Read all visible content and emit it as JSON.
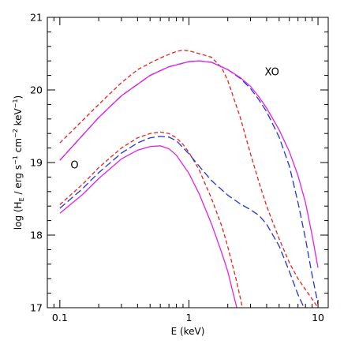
{
  "chart_data": {
    "type": "line",
    "xlabel": "E (keV)",
    "ylabel_parts": {
      "prefix": "log (H",
      "sub": "E",
      "mid": " / erg s",
      "sup1": "−1",
      "mid2": " cm",
      "sup2": "−2",
      "mid3": " keV",
      "sup3": "−1",
      "suffix": ")"
    },
    "xscale": "log",
    "xlim": [
      0.08,
      12
    ],
    "ylim": [
      17,
      21
    ],
    "xticks": [
      {
        "v": 0.1,
        "label": "0.1"
      },
      {
        "v": 1,
        "label": "1"
      },
      {
        "v": 10,
        "label": "10"
      }
    ],
    "yticks": [
      {
        "v": 17,
        "label": "17"
      },
      {
        "v": 18,
        "label": "18"
      },
      {
        "v": 19,
        "label": "19"
      },
      {
        "v": 20,
        "label": "20"
      },
      {
        "v": 21,
        "label": "21"
      }
    ],
    "annotations": [
      {
        "text": "XO",
        "x": 4.4,
        "y": 20.2
      },
      {
        "text": "O",
        "x": 0.13,
        "y": 18.92
      }
    ],
    "series": [
      {
        "group": "XO",
        "style": "red-dashed",
        "color": "#e8231f",
        "dash": "5,3",
        "x": [
          0.1,
          0.15,
          0.2,
          0.3,
          0.4,
          0.5,
          0.6,
          0.7,
          0.8,
          0.9,
          1.0,
          1.2,
          1.5,
          1.8,
          2.0,
          2.5,
          3.0,
          3.5,
          4.0,
          5.0,
          6.0,
          7.0,
          8.0,
          9.0,
          10.0
        ],
        "y": [
          19.27,
          19.58,
          19.8,
          20.1,
          20.28,
          20.37,
          20.44,
          20.49,
          20.53,
          20.55,
          20.54,
          20.5,
          20.45,
          20.3,
          20.13,
          19.62,
          19.12,
          18.72,
          18.4,
          17.95,
          17.62,
          17.4,
          17.25,
          17.12,
          17.0
        ]
      },
      {
        "group": "XO",
        "style": "blue-dashed",
        "color": "#1f35d8",
        "dash": "9,4",
        "x": [
          0.1,
          0.2,
          0.3,
          0.5,
          0.7,
          1.0,
          1.2,
          1.5,
          2.0,
          2.5,
          3.0,
          3.5,
          4.0,
          5.0,
          6.0,
          7.0,
          8.0,
          9.0,
          10.0
        ],
        "y": [
          19.03,
          19.62,
          19.92,
          20.2,
          20.32,
          20.39,
          20.4,
          20.38,
          20.28,
          20.16,
          20.02,
          19.86,
          19.7,
          19.35,
          18.95,
          18.45,
          17.95,
          17.45,
          17.05
        ]
      },
      {
        "group": "XO",
        "style": "magenta-solid",
        "color": "#e620e6",
        "dash": "",
        "x": [
          0.1,
          0.2,
          0.3,
          0.5,
          0.7,
          1.0,
          1.2,
          1.5,
          2.0,
          2.5,
          3.0,
          3.5,
          4.0,
          5.0,
          6.0,
          7.0,
          8.0,
          9.0,
          10.0
        ],
        "y": [
          19.03,
          19.62,
          19.92,
          20.2,
          20.32,
          20.39,
          20.4,
          20.38,
          20.28,
          20.17,
          20.05,
          19.9,
          19.75,
          19.45,
          19.15,
          18.82,
          18.45,
          18.0,
          17.55
        ]
      },
      {
        "group": "O",
        "style": "red-dashed",
        "color": "#e8231f",
        "dash": "5,3",
        "x": [
          0.1,
          0.15,
          0.2,
          0.3,
          0.4,
          0.5,
          0.6,
          0.7,
          0.8,
          0.9,
          1.0,
          1.2,
          1.5,
          1.8,
          2.0,
          2.3,
          2.6
        ],
        "y": [
          18.42,
          18.7,
          18.93,
          19.2,
          19.34,
          19.4,
          19.42,
          19.4,
          19.34,
          19.25,
          19.14,
          18.9,
          18.5,
          18.12,
          17.84,
          17.42,
          17.0
        ]
      },
      {
        "group": "O",
        "style": "blue-dashed",
        "color": "#1f35d8",
        "dash": "9,4",
        "x": [
          0.1,
          0.15,
          0.2,
          0.3,
          0.4,
          0.5,
          0.6,
          0.7,
          0.8,
          1.0,
          1.2,
          1.5,
          2.0,
          2.5,
          3.0,
          3.5,
          4.0,
          5.0,
          6.0,
          7.0,
          7.8
        ],
        "y": [
          18.37,
          18.64,
          18.86,
          19.13,
          19.27,
          19.34,
          19.36,
          19.35,
          19.3,
          19.12,
          18.95,
          18.75,
          18.55,
          18.43,
          18.35,
          18.27,
          18.15,
          17.85,
          17.5,
          17.18,
          17.0
        ]
      },
      {
        "group": "O",
        "style": "magenta-solid",
        "color": "#e620e6",
        "dash": "",
        "x": [
          0.1,
          0.15,
          0.2,
          0.3,
          0.4,
          0.5,
          0.6,
          0.7,
          0.8,
          1.0,
          1.2,
          1.5,
          1.8,
          2.0,
          2.2,
          2.35
        ],
        "y": [
          18.3,
          18.56,
          18.78,
          19.05,
          19.17,
          19.22,
          19.23,
          19.19,
          19.1,
          18.85,
          18.57,
          18.15,
          17.75,
          17.5,
          17.2,
          17.0
        ]
      }
    ]
  }
}
